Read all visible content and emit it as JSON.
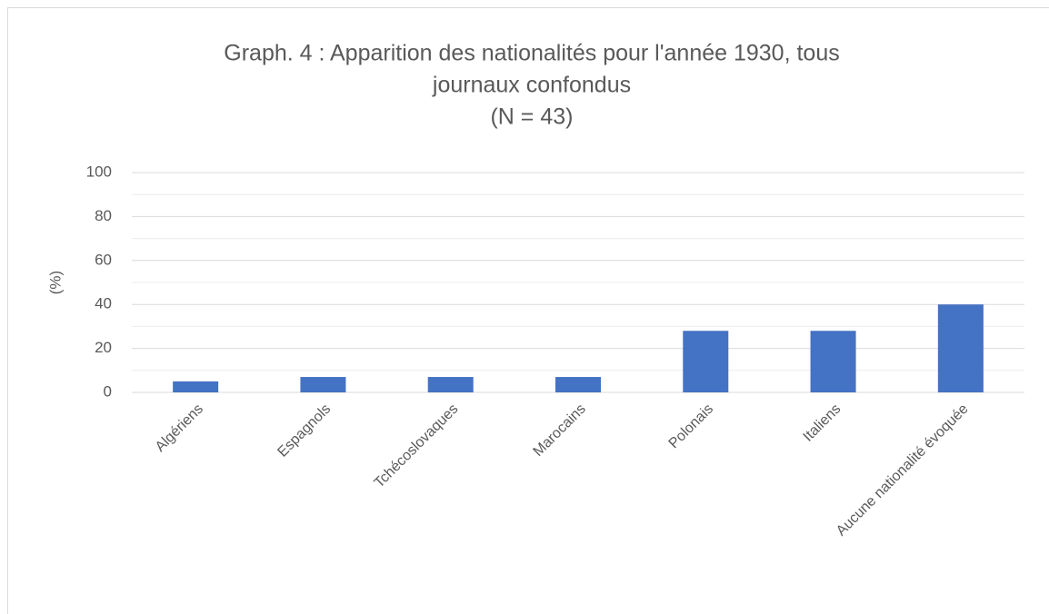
{
  "chart_data": {
    "type": "bar",
    "title": [
      "Graph. 4 : Apparition des nationalités pour l'année 1930, tous",
      "journaux confondus",
      "(N = 43)"
    ],
    "y_label": "(%)",
    "categories": [
      "Algériens",
      "Espagnols",
      "Tchécoslovaques",
      "Marocains",
      "Polonais",
      "Italiens",
      "Aucune nationalité évoquée"
    ],
    "values": [
      5,
      7,
      7,
      7,
      28,
      28,
      40
    ],
    "color": "#4472c4",
    "ylim": [
      0,
      100
    ],
    "yticks": [
      0,
      20,
      40,
      60,
      80,
      100
    ],
    "minor_yticks": [
      10,
      30,
      50,
      70,
      90
    ],
    "grid": true
  }
}
